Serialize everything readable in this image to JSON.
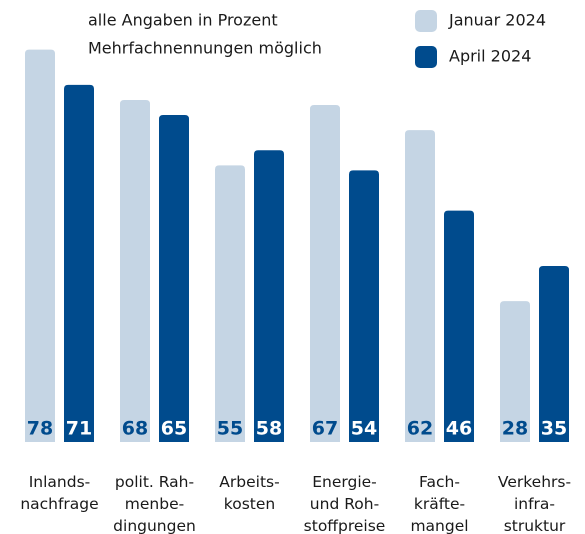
{
  "chart_data": {
    "type": "bar",
    "annotations": [
      "alle Angaben in Prozent",
      "Mehrfachnennungen möglich"
    ],
    "categories": [
      [
        "Inlands-",
        "nachfrage"
      ],
      [
        "polit. Rah-",
        "menbe-",
        "dingungen"
      ],
      [
        "Arbeits-",
        "kosten"
      ],
      [
        "Energie-",
        "und Roh-",
        "stoffpreise"
      ],
      [
        "Fach-",
        "kräfte-",
        "mangel"
      ],
      [
        "Verkehrs-",
        "infra-",
        "struktur"
      ]
    ],
    "series": [
      {
        "name": "Januar 2024",
        "color": "#c5d5e4",
        "label_color": "#004b8d",
        "values": [
          78,
          68,
          55,
          67,
          62,
          28
        ]
      },
      {
        "name": "April 2024",
        "color": "#004b8d",
        "label_color": "#ffffff",
        "values": [
          71,
          65,
          58,
          54,
          46,
          35
        ]
      }
    ]
  }
}
